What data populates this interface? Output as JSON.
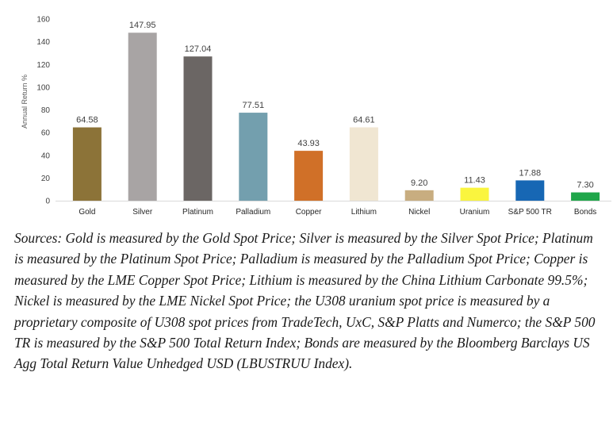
{
  "chart_data": {
    "type": "bar",
    "ylabel": "Annual Return %",
    "ylim": [
      0,
      160
    ],
    "yticks": [
      0,
      20,
      40,
      60,
      80,
      100,
      120,
      140,
      160
    ],
    "grid": false,
    "legend": "none",
    "categories": [
      "Gold",
      "Silver",
      "Platinum",
      "Palladium",
      "Copper",
      "Lithium",
      "Nickel",
      "Uranium",
      "S&P 500 TR",
      "Bonds"
    ],
    "values": [
      64.58,
      147.95,
      127.04,
      77.51,
      43.93,
      64.61,
      9.2,
      11.43,
      17.88,
      7.3
    ],
    "value_labels": [
      "64.58",
      "147.95",
      "127.04",
      "77.51",
      "43.93",
      "64.61",
      "9.20",
      "11.43",
      "17.88",
      "7.30"
    ],
    "colors": [
      "#8c7338",
      "#a8a4a4",
      "#6b6664",
      "#739fae",
      "#d07028",
      "#f0e6d2",
      "#c8ad80",
      "#faf53e",
      "#1767b4",
      "#1fa64a"
    ]
  },
  "note": "Sources: Gold is measured by the Gold Spot Price; Silver is measured by the Silver Spot Price; Platinum is measured by the Platinum Spot Price; Palladium is measured by the Palladium Spot Price; Copper is measured by the LME Copper Spot Price; Lithium is measured by the China Lithium Carbonate 99.5%; Nickel is measured by the LME Nickel Spot Price; the U308 uranium spot price is measured by a proprietary composite of U308 spot prices from TradeTech, UxC, S&P Platts and Numerco; the S&P 500 TR is measured by the S&P 500 Total Return Index; Bonds are measured by the Bloomberg Barclays US Agg Total Return Value Unhedged USD (LBUSTRUU Index)."
}
